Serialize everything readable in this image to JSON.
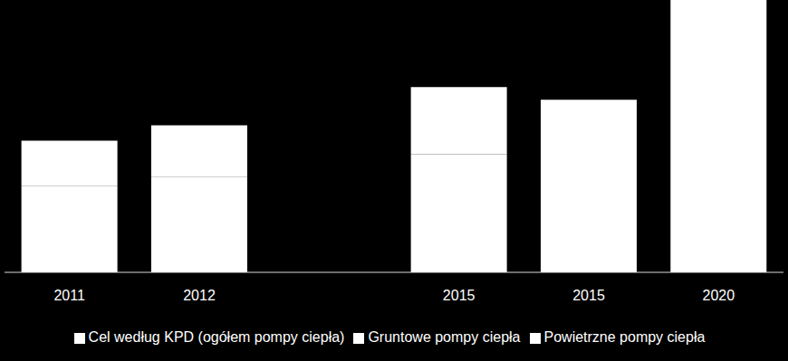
{
  "chart_data": {
    "type": "bar",
    "categories": [
      "2011",
      "2012",
      null,
      "2015",
      "2015",
      "2020"
    ],
    "series": [
      {
        "name": "Gruntowe pompy ciepła",
        "color": "#ffffff",
        "values": [
          95,
          105,
          null,
          130,
          null,
          null
        ]
      },
      {
        "name": "Powietrzne pompy ciepła",
        "color": "#ffffff",
        "values": [
          50,
          57,
          null,
          74,
          null,
          null
        ]
      },
      {
        "name": "Cel według KPD (ogółem pompy ciepła)",
        "color": "#ffffff",
        "values": [
          null,
          null,
          null,
          null,
          190,
          300
        ]
      }
    ],
    "ylim": [
      0,
      300
    ],
    "stacked": true,
    "grid": false,
    "legend": "bottom",
    "tick_labels": "x"
  }
}
